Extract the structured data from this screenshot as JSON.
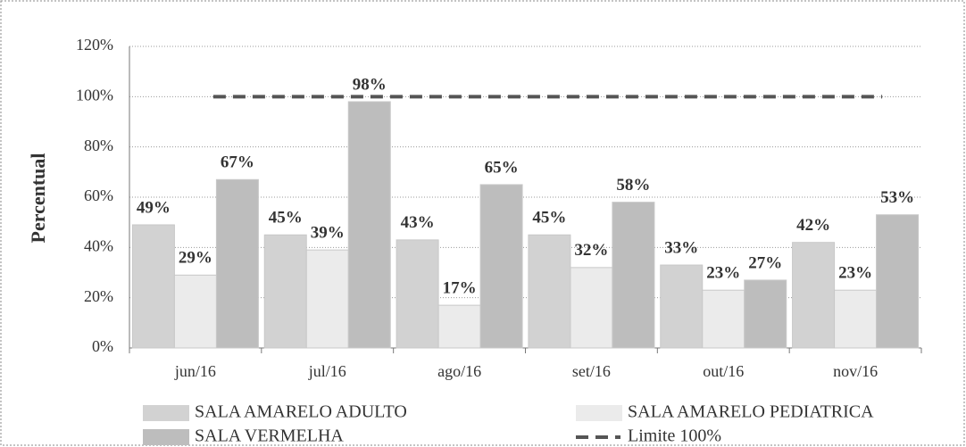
{
  "chart_data": {
    "type": "bar",
    "y_label": "Percentual",
    "categories": [
      "jun/16",
      "jul/16",
      "ago/16",
      "set/16",
      "out/16",
      "nov/16"
    ],
    "series": [
      {
        "name": "SALA AMARELO ADULTO",
        "color": "#d2d2d2",
        "values": [
          49,
          45,
          43,
          45,
          33,
          42
        ],
        "value_labels": [
          "49%",
          "45%",
          "43%",
          "45%",
          "33%",
          "42%"
        ]
      },
      {
        "name": "SALA AMARELO PEDIATRICA",
        "color": "#ebebeb",
        "values": [
          29,
          39,
          17,
          32,
          23,
          23
        ],
        "value_labels": [
          "29%",
          "39%",
          "17%",
          "32%",
          "23%",
          "23%"
        ]
      },
      {
        "name": "SALA VERMELHA",
        "color": "#bdbdbd",
        "values": [
          67,
          98,
          65,
          58,
          27,
          53
        ],
        "value_labels": [
          "67%",
          "98%",
          "65%",
          "58%",
          "27%",
          "53%"
        ]
      },
      {
        "name": "Limite 100%",
        "type": "line",
        "color": "#555555",
        "values": [
          100,
          100,
          100,
          100,
          100,
          100
        ]
      }
    ],
    "ylim": [
      0,
      120
    ],
    "yticks": [
      {
        "value": 0,
        "label": "0%"
      },
      {
        "value": 20,
        "label": "20%"
      },
      {
        "value": 40,
        "label": "40%"
      },
      {
        "value": 60,
        "label": "60%"
      },
      {
        "value": 80,
        "label": "80%"
      },
      {
        "value": 100,
        "label": "100%"
      },
      {
        "value": 120,
        "label": "120%"
      }
    ],
    "grid": true
  }
}
